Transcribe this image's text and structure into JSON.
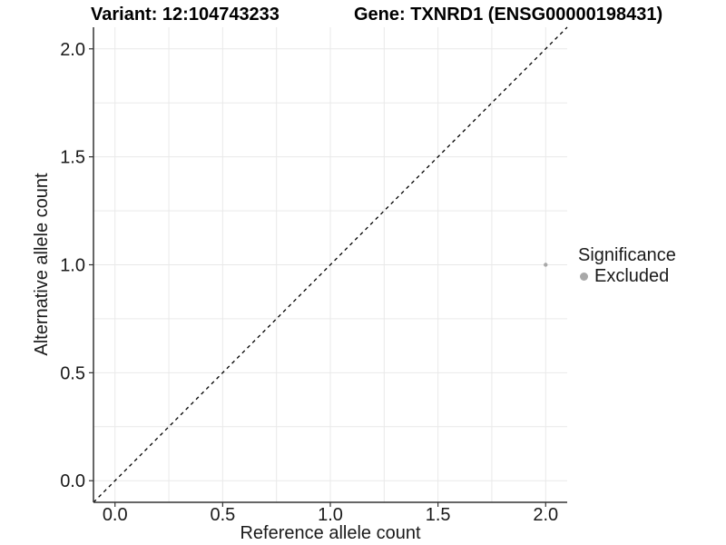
{
  "chart_data": {
    "type": "scatter",
    "title_left": "Variant: 12:104743233",
    "title_right": "Gene: TXNRD1 (ENSG00000198431)",
    "xlabel": "Reference allele count",
    "ylabel": "Alternative allele count",
    "xlim": [
      -0.1,
      2.1
    ],
    "ylim": [
      -0.1,
      2.1
    ],
    "x_ticks": {
      "values": [
        0,
        0.5,
        1,
        1.5,
        2
      ],
      "labels": [
        "0.0",
        "0.5",
        "1.0",
        "1.5",
        "2.0"
      ]
    },
    "y_ticks": {
      "values": [
        0,
        0.5,
        1,
        1.5,
        2
      ],
      "labels": [
        "0.0",
        "0.5",
        "1.0",
        "1.5",
        "2.0"
      ]
    },
    "grid_step": 0.25,
    "grid_range": [
      0,
      2
    ],
    "grid_on": true,
    "reference_line": {
      "type": "identity",
      "slope": 1,
      "intercept": 0,
      "style": "dashed",
      "color": "#000000"
    },
    "series": [
      {
        "name": "Excluded",
        "color": "#a8a8a8",
        "points": [
          {
            "x": 2.0,
            "y": 1.0
          }
        ]
      }
    ],
    "legend": {
      "title": "Significance",
      "position": "right",
      "items": [
        {
          "label": "Excluded",
          "color": "#a8a8a8"
        }
      ]
    },
    "colors": {
      "grid": "#e9e9e9",
      "axis": "#333333",
      "text": "#1a1a1a",
      "background": "#ffffff"
    }
  }
}
